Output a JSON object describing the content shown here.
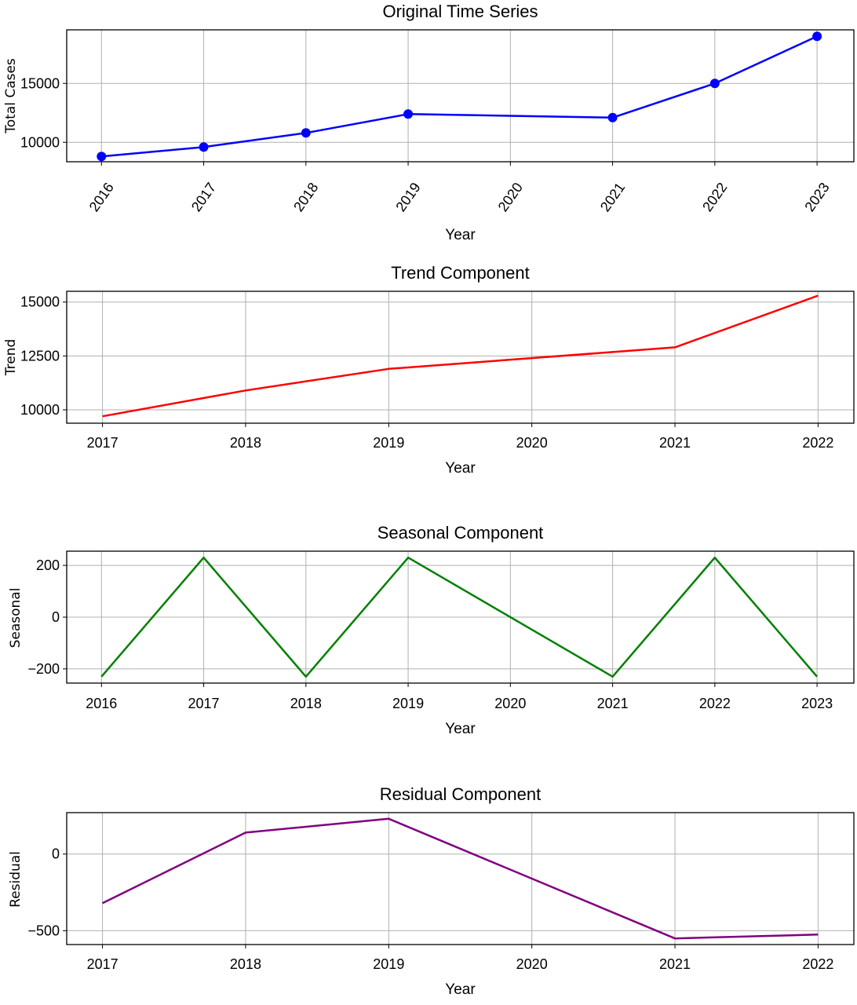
{
  "chart_data": [
    {
      "type": "line",
      "title": "Original Time Series",
      "xlabel": "Year",
      "ylabel": "Total Cases",
      "x": [
        2016,
        2017,
        2018,
        2019,
        2021,
        2022,
        2023
      ],
      "x_ticks": [
        "2016",
        "2017",
        "2018",
        "2019",
        "2020",
        "2021",
        "2022",
        "2023"
      ],
      "x_tick_rotation": 55,
      "xlim": [
        2015.66,
        2023.36
      ],
      "y": [
        8800,
        9600,
        10800,
        12400,
        12100,
        15000,
        19000
      ],
      "y_ticks": [
        10000,
        15000
      ],
      "ylim": [
        8350,
        19550
      ],
      "color": "#0000ff",
      "markers": true,
      "grid": true
    },
    {
      "type": "line",
      "title": "Trend Component",
      "xlabel": "Year",
      "ylabel": "Trend",
      "x": [
        2017,
        2018,
        2019,
        2021,
        2022
      ],
      "x_ticks": [
        "2017",
        "2018",
        "2019",
        "2020",
        "2021",
        "2022"
      ],
      "xlim": [
        2016.75,
        2022.25
      ],
      "y": [
        9700,
        10900,
        11900,
        12900,
        15300
      ],
      "y_ticks": [
        10000,
        12500,
        15000
      ],
      "ylim": [
        9380,
        15500
      ],
      "color": "#ff0000",
      "markers": false,
      "grid": true
    },
    {
      "type": "line",
      "title": "Seasonal Component",
      "xlabel": "Year",
      "ylabel": "Seasonal",
      "x": [
        2016,
        2017,
        2018,
        2019,
        2021,
        2022,
        2023
      ],
      "x_ticks": [
        "2016",
        "2017",
        "2018",
        "2019",
        "2020",
        "2021",
        "2022",
        "2023"
      ],
      "xlim": [
        2015.66,
        2023.36
      ],
      "y": [
        -230,
        230,
        -230,
        230,
        -230,
        230,
        -230
      ],
      "y_ticks": [
        -200,
        0,
        200
      ],
      "ylim": [
        -255,
        255
      ],
      "color": "#008000",
      "markers": false,
      "grid": true
    },
    {
      "type": "line",
      "title": "Residual Component",
      "xlabel": "Year",
      "ylabel": "Residual",
      "x": [
        2017,
        2018,
        2019,
        2021,
        2022
      ],
      "x_ticks": [
        "2017",
        "2018",
        "2019",
        "2020",
        "2021",
        "2022"
      ],
      "xlim": [
        2016.75,
        2022.25
      ],
      "y": [
        -320,
        140,
        230,
        -550,
        -525
      ],
      "y_ticks": [
        0,
        -500
      ],
      "ylim": [
        -590,
        270
      ],
      "color": "#800080",
      "markers": false,
      "grid": true
    }
  ]
}
